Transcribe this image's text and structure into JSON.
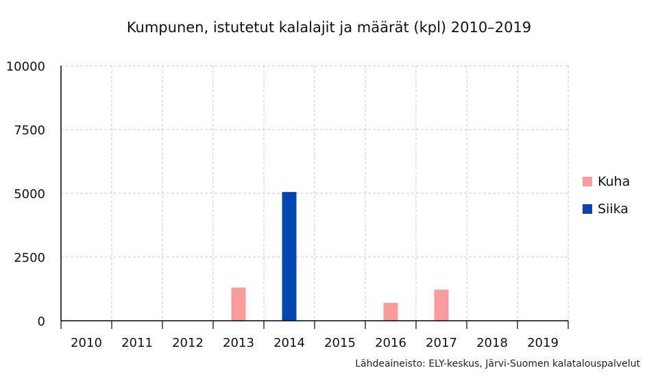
{
  "chart_data": {
    "type": "bar",
    "title": "Kumpunen, istutetut kalalajit ja määrät (kpl) 2010–2019",
    "categories": [
      "2010",
      "2011",
      "2012",
      "2013",
      "2014",
      "2015",
      "2016",
      "2017",
      "2018",
      "2019"
    ],
    "series": [
      {
        "name": "Kuha",
        "color": "#fa9c9c",
        "values": [
          0,
          0,
          0,
          1300,
          0,
          0,
          700,
          1220,
          0,
          0
        ]
      },
      {
        "name": "Siika",
        "color": "#0047b3",
        "values": [
          0,
          0,
          0,
          0,
          5050,
          0,
          0,
          0,
          0,
          0
        ]
      }
    ],
    "ylim": [
      0,
      10000
    ],
    "yticks": [
      "0",
      "2500",
      "5000",
      "7500",
      "10000"
    ],
    "grid": true,
    "legend_position": "right",
    "source": "Lähdeaineisto: ELY-keskus, Järvi-Suomen kalatalouspalvelut"
  }
}
